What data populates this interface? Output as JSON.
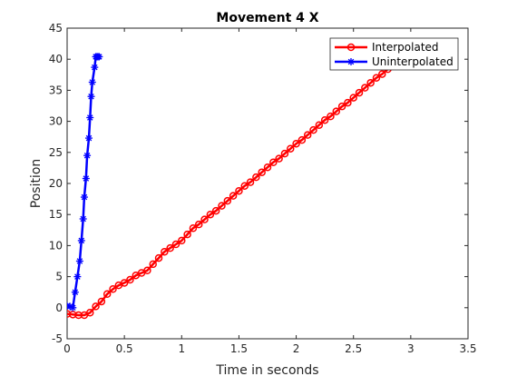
{
  "chart_data": {
    "type": "line",
    "title": "Movement 4 X",
    "xlabel": "Time in seconds",
    "ylabel": "Position",
    "xlim": [
      0,
      3.5
    ],
    "ylim": [
      -5,
      45
    ],
    "xticks": [
      0,
      0.5,
      1,
      1.5,
      2,
      2.5,
      3,
      3.5
    ],
    "xtick_labels": [
      "0",
      "0.5",
      "1",
      "1.5",
      "2",
      "2.5",
      "3",
      "3.5"
    ],
    "yticks": [
      -5,
      0,
      5,
      10,
      15,
      20,
      25,
      30,
      35,
      40,
      45
    ],
    "ytick_labels": [
      "-5",
      "0",
      "5",
      "10",
      "15",
      "20",
      "25",
      "30",
      "35",
      "40",
      "45"
    ],
    "grid": false,
    "legend_position": "top-right",
    "series": [
      {
        "name": "Interpolated",
        "color": "#ff0000",
        "marker": "circle",
        "x": [
          0,
          0.05,
          0.1,
          0.15,
          0.2,
          0.25,
          0.3,
          0.35,
          0.4,
          0.45,
          0.5,
          0.55,
          0.6,
          0.65,
          0.7,
          0.75,
          0.8,
          0.85,
          0.9,
          0.95,
          1.0,
          1.05,
          1.1,
          1.15,
          1.2,
          1.25,
          1.3,
          1.35,
          1.4,
          1.45,
          1.5,
          1.55,
          1.6,
          1.65,
          1.7,
          1.75,
          1.8,
          1.85,
          1.9,
          1.95,
          2.0,
          2.05,
          2.1,
          2.15,
          2.2,
          2.25,
          2.3,
          2.35,
          2.4,
          2.45,
          2.5,
          2.55,
          2.6,
          2.65,
          2.7,
          2.75,
          2.8,
          2.85,
          2.9,
          2.95,
          3.0
        ],
        "y": [
          -1.0,
          -1.1,
          -1.2,
          -1.2,
          -0.8,
          0.2,
          1.0,
          2.2,
          3.0,
          3.6,
          4.0,
          4.5,
          5.2,
          5.6,
          6.0,
          7.0,
          8.0,
          9.0,
          9.6,
          10.2,
          10.8,
          11.8,
          12.8,
          13.4,
          14.2,
          15.0,
          15.6,
          16.4,
          17.2,
          18.0,
          18.8,
          19.6,
          20.2,
          21.0,
          21.8,
          22.6,
          23.4,
          24.0,
          24.8,
          25.6,
          26.4,
          27.0,
          27.8,
          28.6,
          29.4,
          30.2,
          30.8,
          31.6,
          32.4,
          33.0,
          33.8,
          34.6,
          35.4,
          36.2,
          37.0,
          37.6,
          38.4,
          39.2,
          40.0,
          40.8,
          41.6
        ]
      },
      {
        "name": "Uninterpolated",
        "color": "#0000ff",
        "marker": "star",
        "x": [
          0.0,
          0.025,
          0.05,
          0.07,
          0.09,
          0.11,
          0.125,
          0.14,
          0.15,
          0.165,
          0.175,
          0.19,
          0.2,
          0.21,
          0.22,
          0.24,
          0.25,
          0.26,
          0.27,
          0.28
        ],
        "y": [
          0.3,
          0.2,
          0.0,
          2.5,
          5.0,
          7.5,
          10.8,
          14.3,
          17.8,
          20.8,
          24.5,
          27.3,
          30.6,
          34.0,
          36.3,
          38.7,
          40.4,
          40.4,
          40.4,
          40.4
        ]
      }
    ]
  }
}
